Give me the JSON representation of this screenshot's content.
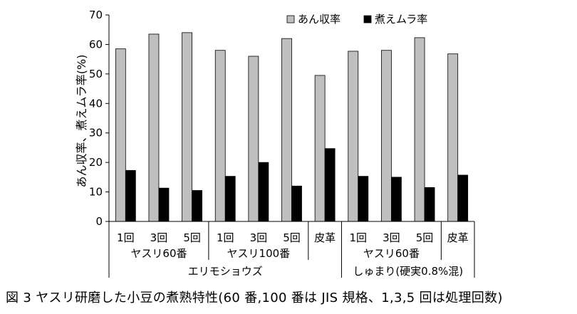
{
  "chart_data": {
    "type": "bar",
    "ylabel": "あん収率、煮えムラ率(%)",
    "ylim": [
      0,
      70
    ],
    "yticks": [
      "0",
      "10",
      "20",
      "30",
      "40",
      "50",
      "60",
      "70"
    ],
    "categories": [
      "1回",
      "3回",
      "5回",
      "1回",
      "3回",
      "5回",
      "皮革",
      "1回",
      "3回",
      "5回",
      "皮革"
    ],
    "series": [
      {
        "name": "あん収率",
        "color": "#bfbfbf",
        "values": [
          58.5,
          63.5,
          64.0,
          58.0,
          56.0,
          62.0,
          49.5,
          57.7,
          58.0,
          62.3,
          56.8
        ]
      },
      {
        "name": "煮えムラ率",
        "color": "#000000",
        "values": [
          17.3,
          11.3,
          10.5,
          15.3,
          20.0,
          12.0,
          24.7,
          15.3,
          15.0,
          11.5,
          15.7
        ]
      }
    ],
    "subgroups": [
      "ヤスリ60番",
      "ヤスリ100番",
      "ヤスリ60番"
    ],
    "groups": [
      "エリモショウズ",
      "しゅまり(硬実0.8%混)"
    ],
    "legend_position": "top-right",
    "grid": false
  },
  "caption": "図 3  ヤスリ研磨した小豆の煮熟特性(60 番,100 番は JIS 規格、1,3,5 回は処理回数)"
}
